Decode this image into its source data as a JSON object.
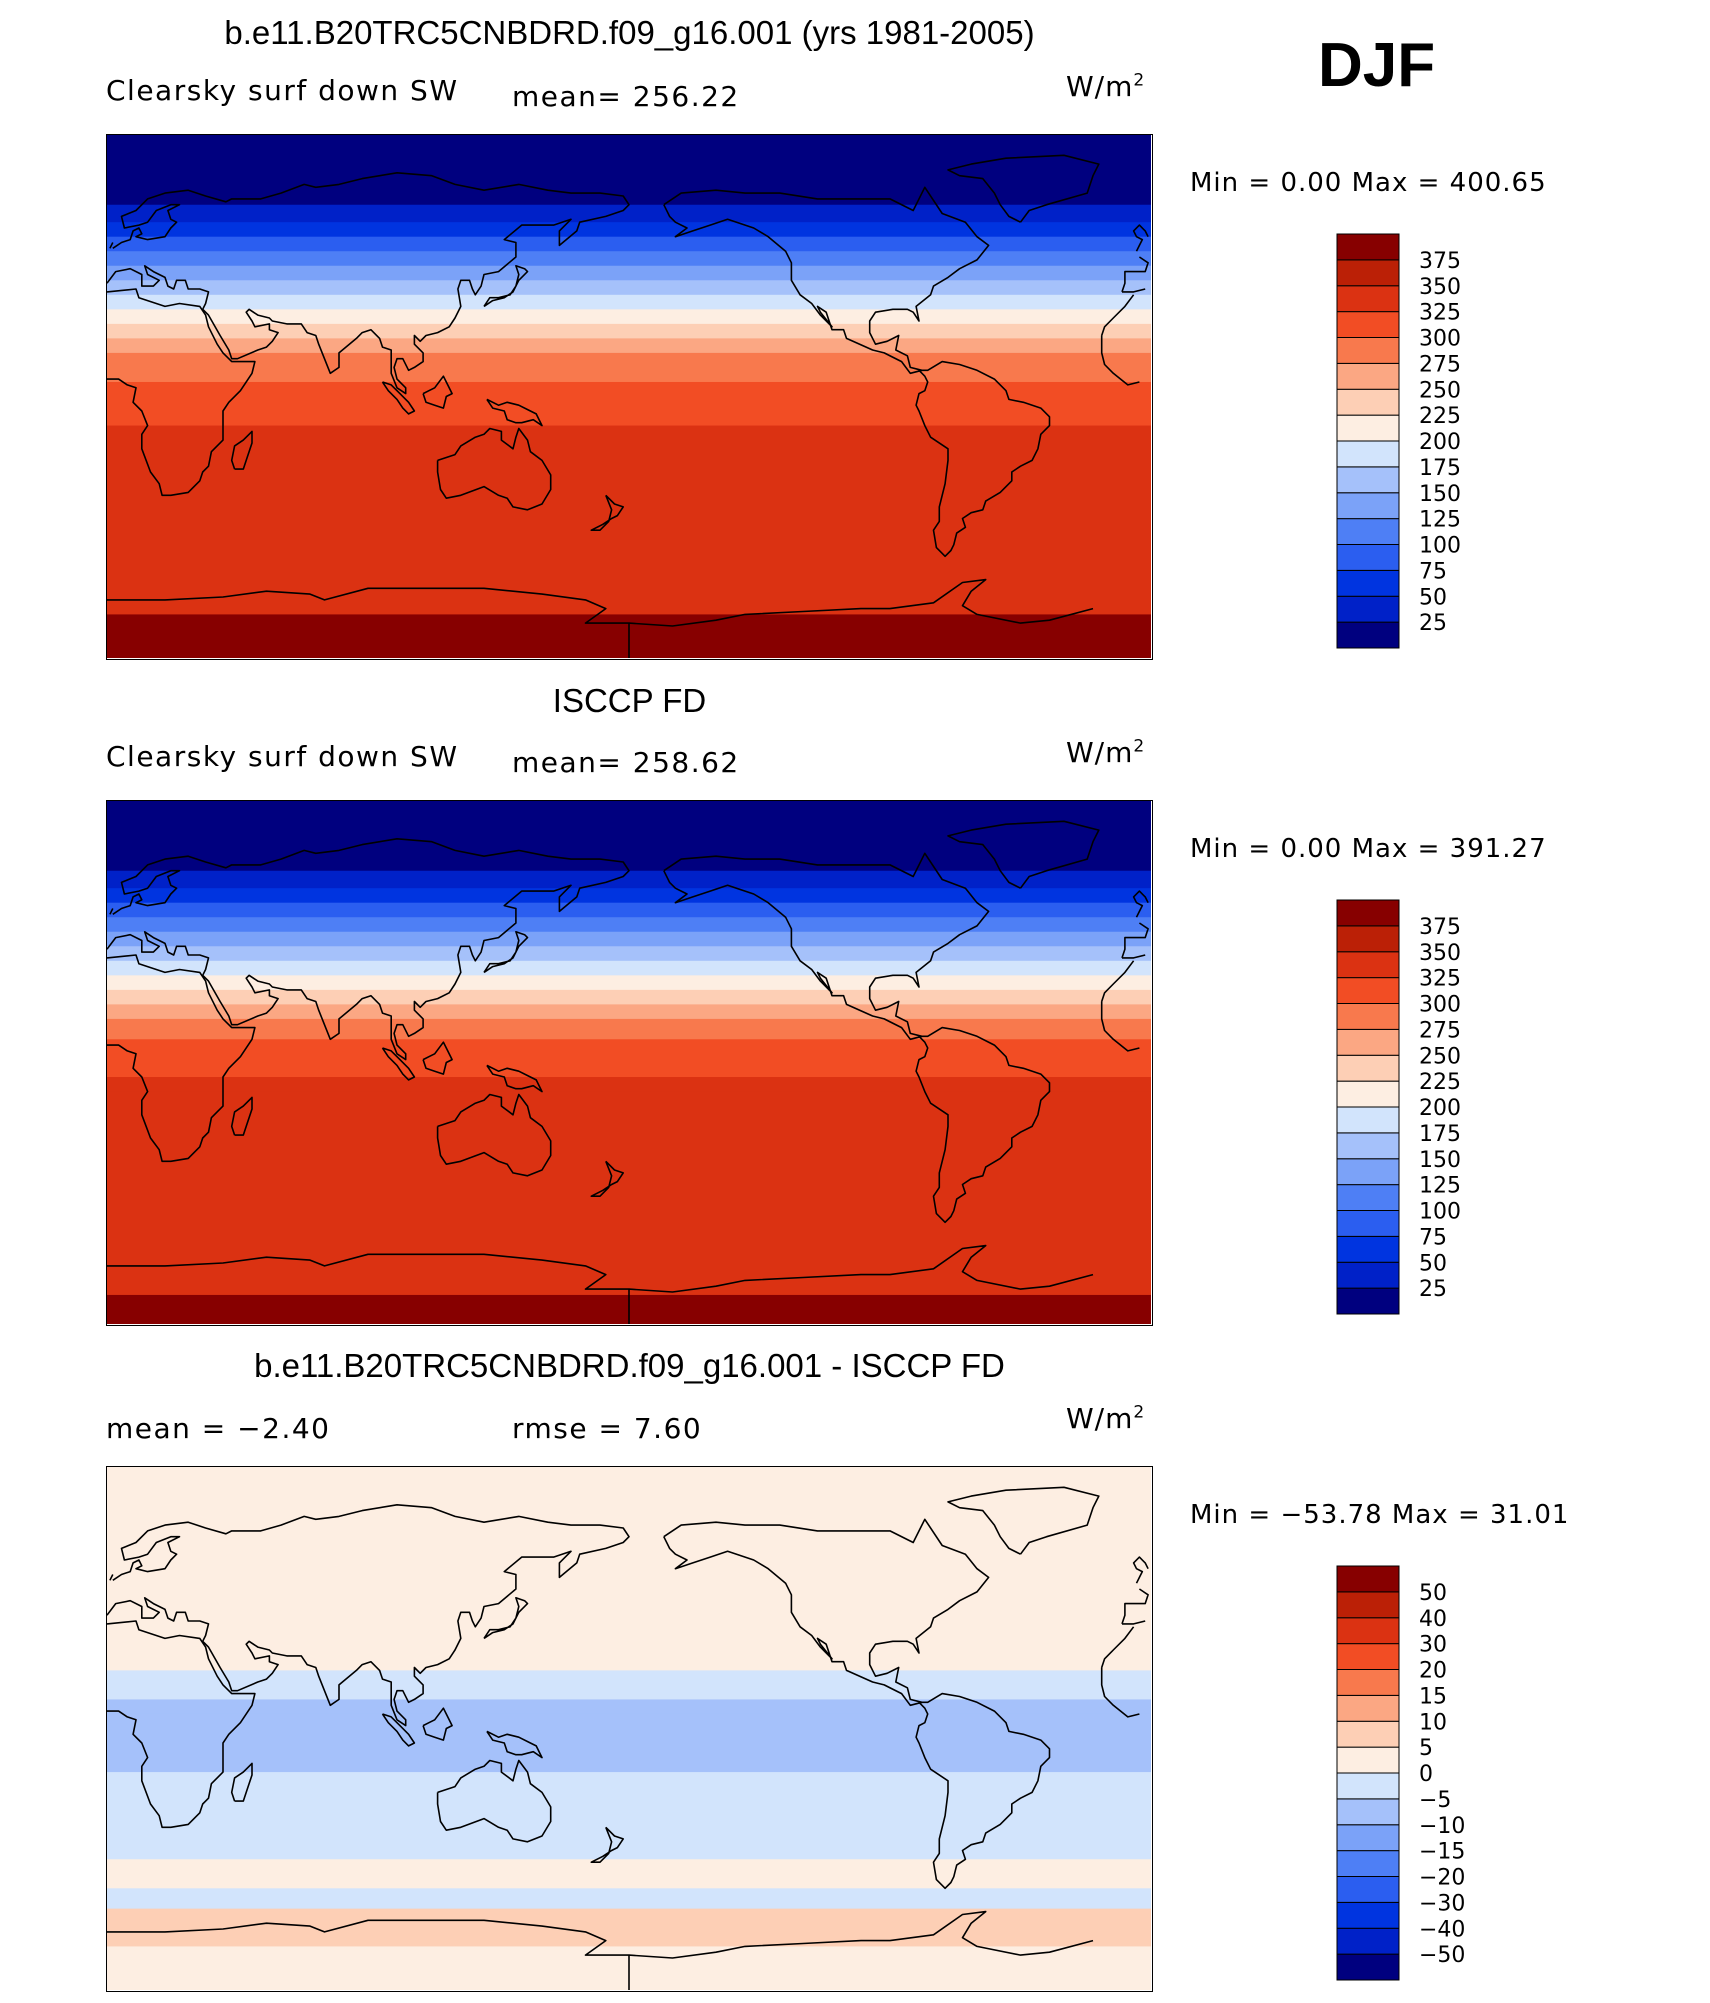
{
  "season": "DJF",
  "units_base": "W/m",
  "units_exp": "2",
  "colors": {
    "abs_palette": [
      "#00007f",
      "#0021c8",
      "#0034e0",
      "#2b5ef0",
      "#4e7ff5",
      "#7ba2f8",
      "#a5c1fa",
      "#d2e4fc",
      "#fdeee2",
      "#fdcfb5",
      "#fba783",
      "#f8794d",
      "#f24d24",
      "#db3212",
      "#bb2006",
      "#870000"
    ],
    "diff_palette": [
      "#00007f",
      "#0021c8",
      "#0034e0",
      "#2b5ef0",
      "#4e7ff5",
      "#7ba2f8",
      "#a5c1fa",
      "#d2e4fc",
      "#fdeee2",
      "#fdcfb5",
      "#fba783",
      "#f8794d",
      "#f24d24",
      "#db3212",
      "#bb2006",
      "#870000"
    ]
  },
  "chart_data": [
    {
      "type": "contour-map",
      "title": "b.e11.B20TRC5CNBDRD.f09_g16.001 (yrs 1981-2005)",
      "left_label": "Clearsky surf down SW",
      "center_label": "mean= 256.22",
      "mean": 256.22,
      "min_label": "Min =     0.00 Max =  400.65",
      "min": 0.0,
      "max": 400.65,
      "levels": [
        "25",
        "50",
        "75",
        "100",
        "125",
        "150",
        "175",
        "200",
        "225",
        "250",
        "275",
        "300",
        "325",
        "350",
        "375"
      ],
      "lat_bands": [
        {
          "lat": [
            90,
            66
          ],
          "value": 10
        },
        {
          "lat": [
            66,
            60
          ],
          "value": 40
        },
        {
          "lat": [
            60,
            55
          ],
          "value": 60
        },
        {
          "lat": [
            55,
            50
          ],
          "value": 90
        },
        {
          "lat": [
            50,
            45
          ],
          "value": 115
        },
        {
          "lat": [
            45,
            40
          ],
          "value": 140
        },
        {
          "lat": [
            40,
            35
          ],
          "value": 165
        },
        {
          "lat": [
            35,
            30
          ],
          "value": 190
        },
        {
          "lat": [
            30,
            25
          ],
          "value": 215
        },
        {
          "lat": [
            25,
            20
          ],
          "value": 240
        },
        {
          "lat": [
            20,
            15
          ],
          "value": 265
        },
        {
          "lat": [
            15,
            5
          ],
          "value": 290
        },
        {
          "lat": [
            5,
            -10
          ],
          "value": 315
        },
        {
          "lat": [
            -10,
            -15
          ],
          "value": 330
        },
        {
          "lat": [
            -15,
            -45
          ],
          "value": 345
        },
        {
          "lat": [
            -45,
            -65
          ],
          "value": 330
        },
        {
          "lat": [
            -65,
            -75
          ],
          "value": 345
        },
        {
          "lat": [
            -75,
            -90
          ],
          "value": 385
        }
      ]
    },
    {
      "type": "contour-map",
      "title": "ISCCP FD",
      "left_label": "Clearsky surf down SW",
      "center_label": "mean= 258.62",
      "mean": 258.62,
      "min_label": "Min =     0.00 Max =  391.27",
      "min": 0.0,
      "max": 391.27,
      "levels": [
        "25",
        "50",
        "75",
        "100",
        "125",
        "150",
        "175",
        "200",
        "225",
        "250",
        "275",
        "300",
        "325",
        "350",
        "375"
      ],
      "lat_bands": [
        {
          "lat": [
            90,
            66
          ],
          "value": 10
        },
        {
          "lat": [
            66,
            60
          ],
          "value": 40
        },
        {
          "lat": [
            60,
            55
          ],
          "value": 60
        },
        {
          "lat": [
            55,
            50
          ],
          "value": 90
        },
        {
          "lat": [
            50,
            45
          ],
          "value": 115
        },
        {
          "lat": [
            45,
            40
          ],
          "value": 140
        },
        {
          "lat": [
            40,
            35
          ],
          "value": 165
        },
        {
          "lat": [
            35,
            30
          ],
          "value": 190
        },
        {
          "lat": [
            30,
            25
          ],
          "value": 215
        },
        {
          "lat": [
            25,
            20
          ],
          "value": 240
        },
        {
          "lat": [
            20,
            15
          ],
          "value": 265
        },
        {
          "lat": [
            15,
            8
          ],
          "value": 290
        },
        {
          "lat": [
            8,
            -5
          ],
          "value": 315
        },
        {
          "lat": [
            -5,
            -10
          ],
          "value": 330
        },
        {
          "lat": [
            -10,
            -50
          ],
          "value": 345
        },
        {
          "lat": [
            -50,
            -65
          ],
          "value": 330
        },
        {
          "lat": [
            -65,
            -80
          ],
          "value": 345
        },
        {
          "lat": [
            -80,
            -90
          ],
          "value": 385
        }
      ]
    },
    {
      "type": "contour-map",
      "title": "b.e11.B20TRC5CNBDRD.f09_g16.001 - ISCCP FD",
      "left_label": "mean =   −2.40",
      "center_label": "rmse =    7.60",
      "mean": -2.4,
      "rmse": 7.6,
      "min_label": "Min = −53.78 Max =   31.01",
      "min": -53.78,
      "max": 31.01,
      "levels": [
        "−50",
        "−40",
        "−30",
        "−20",
        "−15",
        "−10",
        "−5",
        "0",
        "5",
        "10",
        "15",
        "20",
        "30",
        "40",
        "50"
      ],
      "lat_bands": [
        {
          "lat": [
            90,
            75
          ],
          "value": 2
        },
        {
          "lat": [
            75,
            20
          ],
          "value": 3
        },
        {
          "lat": [
            20,
            10
          ],
          "value": -3
        },
        {
          "lat": [
            10,
            5
          ],
          "value": -8
        },
        {
          "lat": [
            5,
            -15
          ],
          "value": -8
        },
        {
          "lat": [
            -15,
            -30
          ],
          "value": -3
        },
        {
          "lat": [
            -30,
            -45
          ],
          "value": -3
        },
        {
          "lat": [
            -45,
            -55
          ],
          "value": 3
        },
        {
          "lat": [
            -55,
            -62
          ],
          "value": -2
        },
        {
          "lat": [
            -62,
            -75
          ],
          "value": 7
        },
        {
          "lat": [
            -75,
            -90
          ],
          "value": 3
        }
      ]
    }
  ]
}
